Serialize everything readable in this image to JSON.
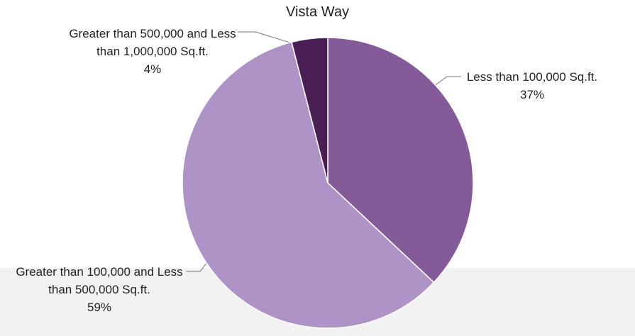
{
  "chart_data": {
    "type": "pie",
    "title": "Vista Way",
    "categories": [
      "Less than 100,000 Sq.ft.",
      "Greater than 100,000 and Less than 500,000 Sq.ft.",
      "Greater than 500,000 and Less than 1,000,000 Sq.ft."
    ],
    "values": [
      37,
      59,
      4
    ],
    "value_labels": [
      "37%",
      "59%",
      "4%"
    ],
    "colors": [
      "#845a99",
      "#ae93c6",
      "#4a1f55"
    ]
  }
}
